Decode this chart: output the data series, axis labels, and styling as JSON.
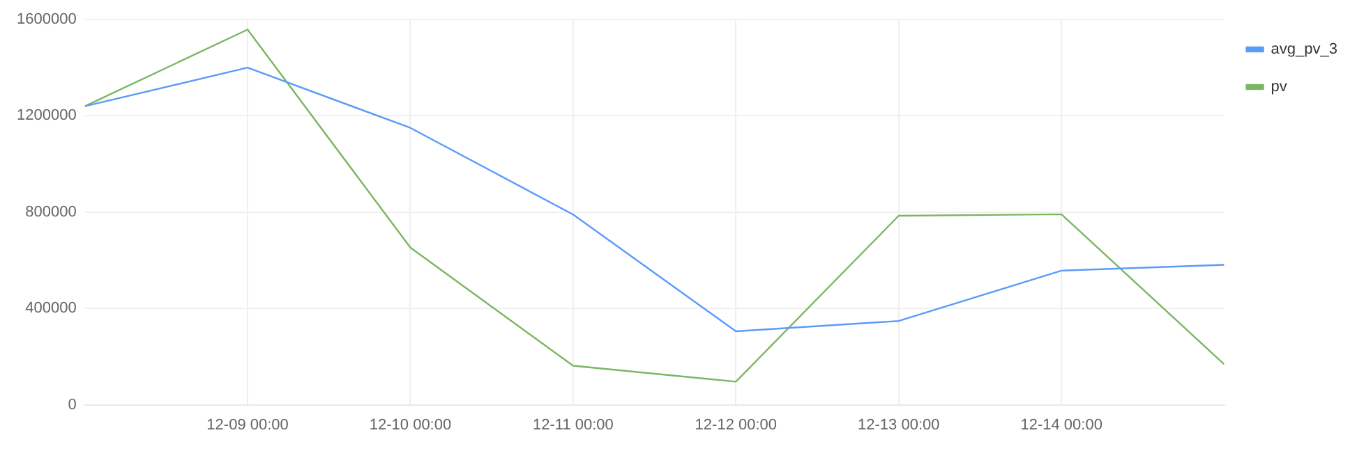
{
  "chart_data": {
    "type": "line",
    "x": [
      "--12-08",
      "--12-09",
      "--12-10",
      "--12-11",
      "--12-12",
      "--12-13",
      "--12-14",
      "--12-15"
    ],
    "series": [
      {
        "name": "avg_pv_3",
        "color": "#5b9bf8",
        "values": [
          1240000,
          1400000,
          1150000,
          790000,
          305000,
          348000,
          557000,
          581000
        ]
      },
      {
        "name": "pv",
        "color": "#7cb661",
        "values": [
          1240000,
          1558000,
          653000,
          162000,
          96000,
          785000,
          791000,
          168000
        ]
      }
    ],
    "xlim": [
      "--12-08",
      "--12-15"
    ],
    "xticks": [
      {
        "value": "--12-09",
        "label": "12-09 00:00"
      },
      {
        "value": "--12-10",
        "label": "12-10 00:00"
      },
      {
        "value": "--12-11",
        "label": "12-11 00:00"
      },
      {
        "value": "--12-12",
        "label": "12-12 00:00"
      },
      {
        "value": "--12-13",
        "label": "12-13 00:00"
      },
      {
        "value": "--12-14",
        "label": "12-14 00:00"
      }
    ],
    "ylim": [
      0,
      1600000
    ],
    "yticks": [
      0,
      400000,
      800000,
      1200000,
      1600000
    ],
    "grid": true,
    "legend": "top right",
    "marker": "none",
    "line_style": "solid"
  }
}
